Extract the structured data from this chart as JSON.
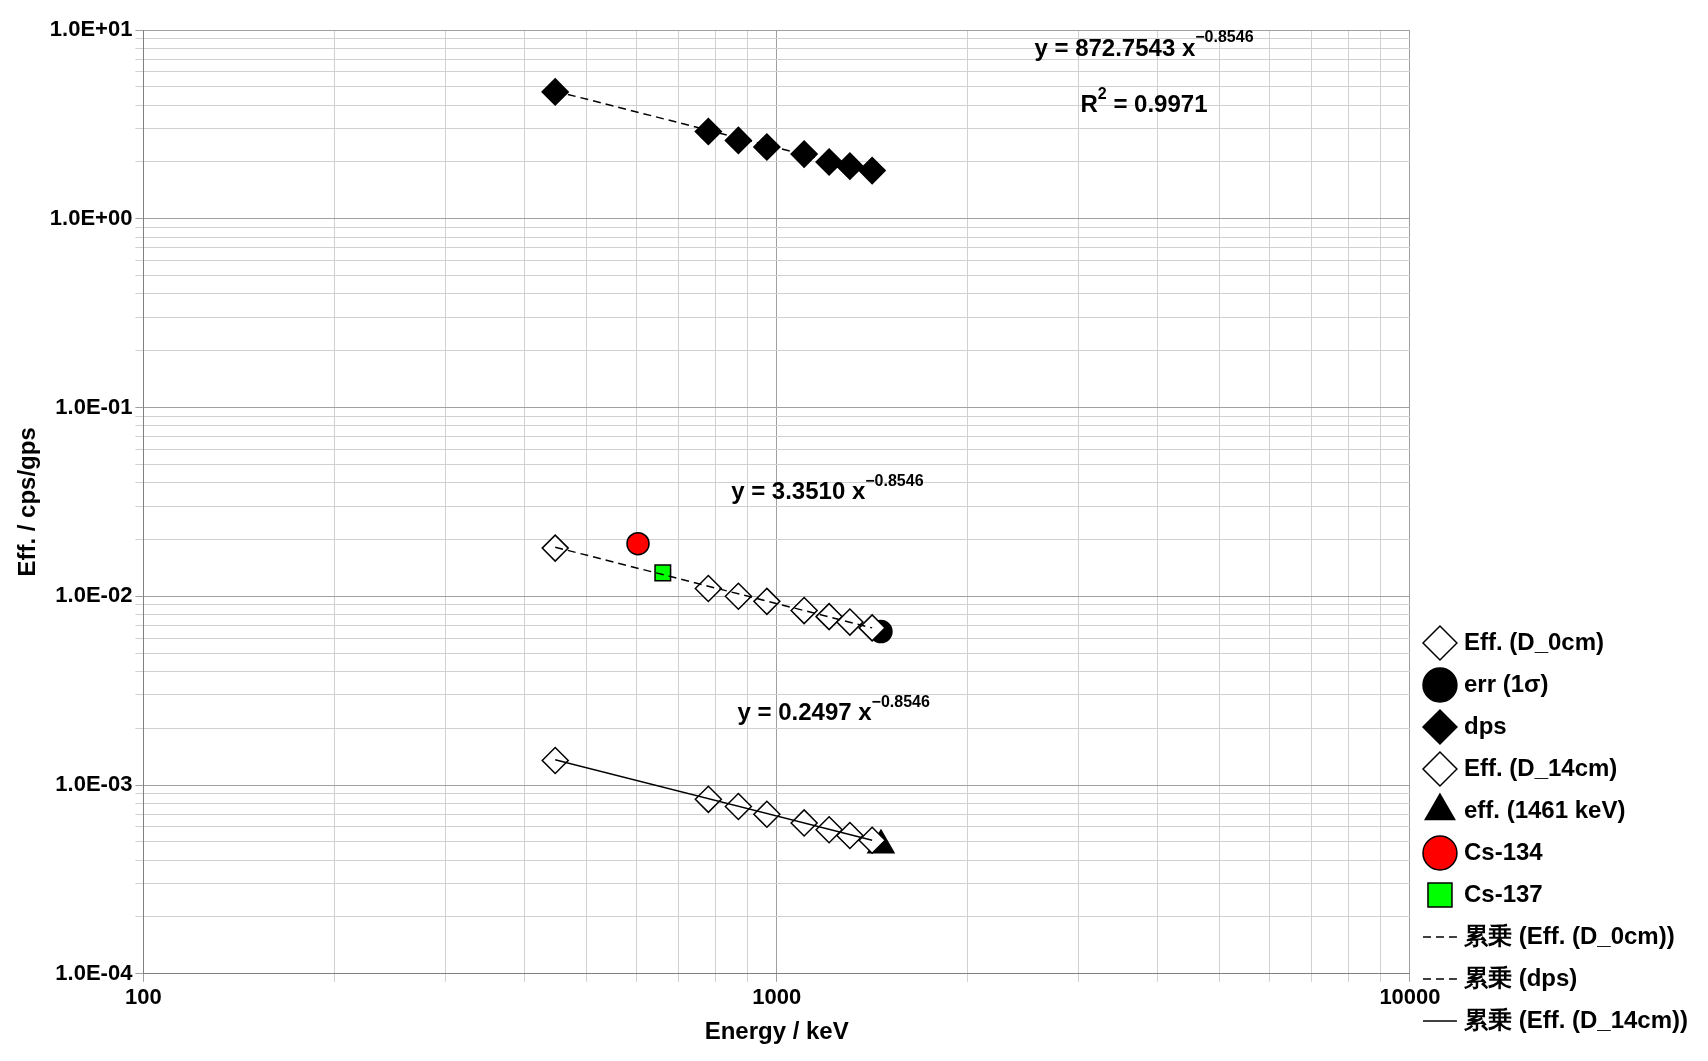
{
  "chart_data": {
    "type": "scatter",
    "xlabel": "Energy / keV",
    "ylabel": "Eff. / cps/gps",
    "log": "xy",
    "grid": true,
    "legend": "bottom right",
    "xlim": [
      100,
      10000
    ],
    "xticks": [
      100,
      {
        "value": 200,
        "label": null
      },
      {
        "value": 300,
        "label": null
      },
      {
        "value": 400,
        "label": null
      },
      {
        "value": 500,
        "label": null
      },
      {
        "value": 600,
        "label": null
      },
      {
        "value": 700,
        "label": null
      },
      {
        "value": 800,
        "label": null
      },
      {
        "value": 900,
        "label": null
      },
      1000,
      {
        "value": 2000,
        "label": null
      },
      {
        "value": 3000,
        "label": null
      },
      {
        "value": 4000,
        "label": null
      },
      {
        "value": 5000,
        "label": null
      },
      {
        "value": 6000,
        "label": null
      },
      {
        "value": 7000,
        "label": null
      },
      {
        "value": 8000,
        "label": null
      },
      {
        "value": 9000,
        "label": null
      },
      10000
    ],
    "ylim": [
      0.0001,
      10
    ],
    "yticks": [
      {
        "value": 0.0001,
        "label": "1.0E-04"
      },
      {
        "value": 0.0002,
        "label": null
      },
      {
        "value": 0.0003,
        "label": null
      },
      {
        "value": 0.0004,
        "label": null
      },
      {
        "value": 0.0005,
        "label": null
      },
      {
        "value": 0.0006,
        "label": null
      },
      {
        "value": 0.0007,
        "label": null
      },
      {
        "value": 0.0008,
        "label": null
      },
      {
        "value": 0.0009,
        "label": null
      },
      {
        "value": 0.001,
        "label": "1.0E-03"
      },
      {
        "value": 0.002,
        "label": null
      },
      {
        "value": 0.003,
        "label": null
      },
      {
        "value": 0.004,
        "label": null
      },
      {
        "value": 0.005,
        "label": null
      },
      {
        "value": 0.006,
        "label": null
      },
      {
        "value": 0.007,
        "label": null
      },
      {
        "value": 0.008,
        "label": null
      },
      {
        "value": 0.009,
        "label": null
      },
      {
        "value": 0.01,
        "label": "1.0E-02"
      },
      {
        "value": 0.02,
        "label": null
      },
      {
        "value": 0.03,
        "label": null
      },
      {
        "value": 0.04,
        "label": null
      },
      {
        "value": 0.05,
        "label": null
      },
      {
        "value": 0.06,
        "label": null
      },
      {
        "value": 0.07,
        "label": null
      },
      {
        "value": 0.08,
        "label": null
      },
      {
        "value": 0.09,
        "label": null
      },
      {
        "value": 0.1,
        "label": "1.0E-01"
      },
      {
        "value": 0.2,
        "label": null
      },
      {
        "value": 0.3,
        "label": null
      },
      {
        "value": 0.4,
        "label": null
      },
      {
        "value": 0.5,
        "label": null
      },
      {
        "value": 0.6,
        "label": null
      },
      {
        "value": 0.7,
        "label": null
      },
      {
        "value": 0.8,
        "label": null
      },
      {
        "value": 0.9,
        "label": null
      },
      {
        "value": 1,
        "label": "1.0E+00"
      },
      {
        "value": 2,
        "label": null
      },
      {
        "value": 3,
        "label": null
      },
      {
        "value": 4,
        "label": null
      },
      {
        "value": 5,
        "label": null
      },
      {
        "value": 6,
        "label": null
      },
      {
        "value": 7,
        "label": null
      },
      {
        "value": 8,
        "label": null
      },
      {
        "value": 9,
        "label": null
      },
      {
        "value": 10,
        "label": "1.0E+01"
      }
    ],
    "series": [
      {
        "name": "Eff. (D_0cm)",
        "marker": "diamond",
        "color": "#ffffff",
        "x": [
          447,
          780,
          870,
          965,
          1105,
          1210,
          1305,
          1415
        ],
        "values": [
          0.018,
          0.011,
          0.01,
          0.0094,
          0.0084,
          0.0078,
          0.0073,
          0.0068
        ]
      },
      {
        "name": "err (1σ)",
        "marker": "circle",
        "color": "#000000",
        "x": [
          1461
        ],
        "values": [
          0.0065
        ]
      },
      {
        "name": "dps",
        "marker": "diamond",
        "color": "#000000",
        "x": [
          447,
          780,
          870,
          965,
          1105,
          1210,
          1305,
          1415
        ],
        "values": [
          4.7,
          2.9,
          2.6,
          2.4,
          2.2,
          2.0,
          1.9,
          1.8
        ]
      },
      {
        "name": "Eff. (D_14cm)",
        "marker": "diamond",
        "color": "#ffffff",
        "x": [
          447,
          780,
          870,
          965,
          1105,
          1210,
          1305,
          1415
        ],
        "values": [
          0.00135,
          0.00084,
          0.00077,
          0.0007,
          0.00063,
          0.00058,
          0.00054,
          0.00051
        ]
      },
      {
        "name": "eff. (1461 keV)",
        "marker": "triangle",
        "color": "#000000",
        "x": [
          1461
        ],
        "values": [
          0.00048
        ]
      },
      {
        "name": "Cs-134",
        "marker": "circle",
        "color": "#ff0000",
        "x": [
          604
        ],
        "values": [
          0.019
        ]
      },
      {
        "name": "Cs-137",
        "marker": "square",
        "color": "#00ff00",
        "x": [
          661
        ],
        "values": [
          0.0133
        ]
      },
      {
        "name": "累乗 (Eff. (D_0cm))",
        "type": "line",
        "line_style": "dashed",
        "color": "#000000",
        "x": [
          447,
          1415
        ],
        "values": [
          0.0182,
          0.0068
        ]
      },
      {
        "name": "累乗 (dps)",
        "type": "line",
        "line_style": "dashed",
        "color": "#000000",
        "x": [
          447,
          1415
        ],
        "values": [
          4.74,
          1.77
        ]
      },
      {
        "name": "累乗 (Eff. (D_14cm))",
        "type": "line",
        "line_style": "solid",
        "color": "#000000",
        "x": [
          447,
          1415
        ],
        "values": [
          0.00136,
          0.00051
        ]
      }
    ],
    "annotations": [
      "y = 872.7543 x$^{−0.8546}$",
      "R$^{2}$ = 0.9971",
      "y = 3.3510 x$^{−0.8546}$",
      "y = 0.2497 x$^{−0.8546}$"
    ]
  }
}
